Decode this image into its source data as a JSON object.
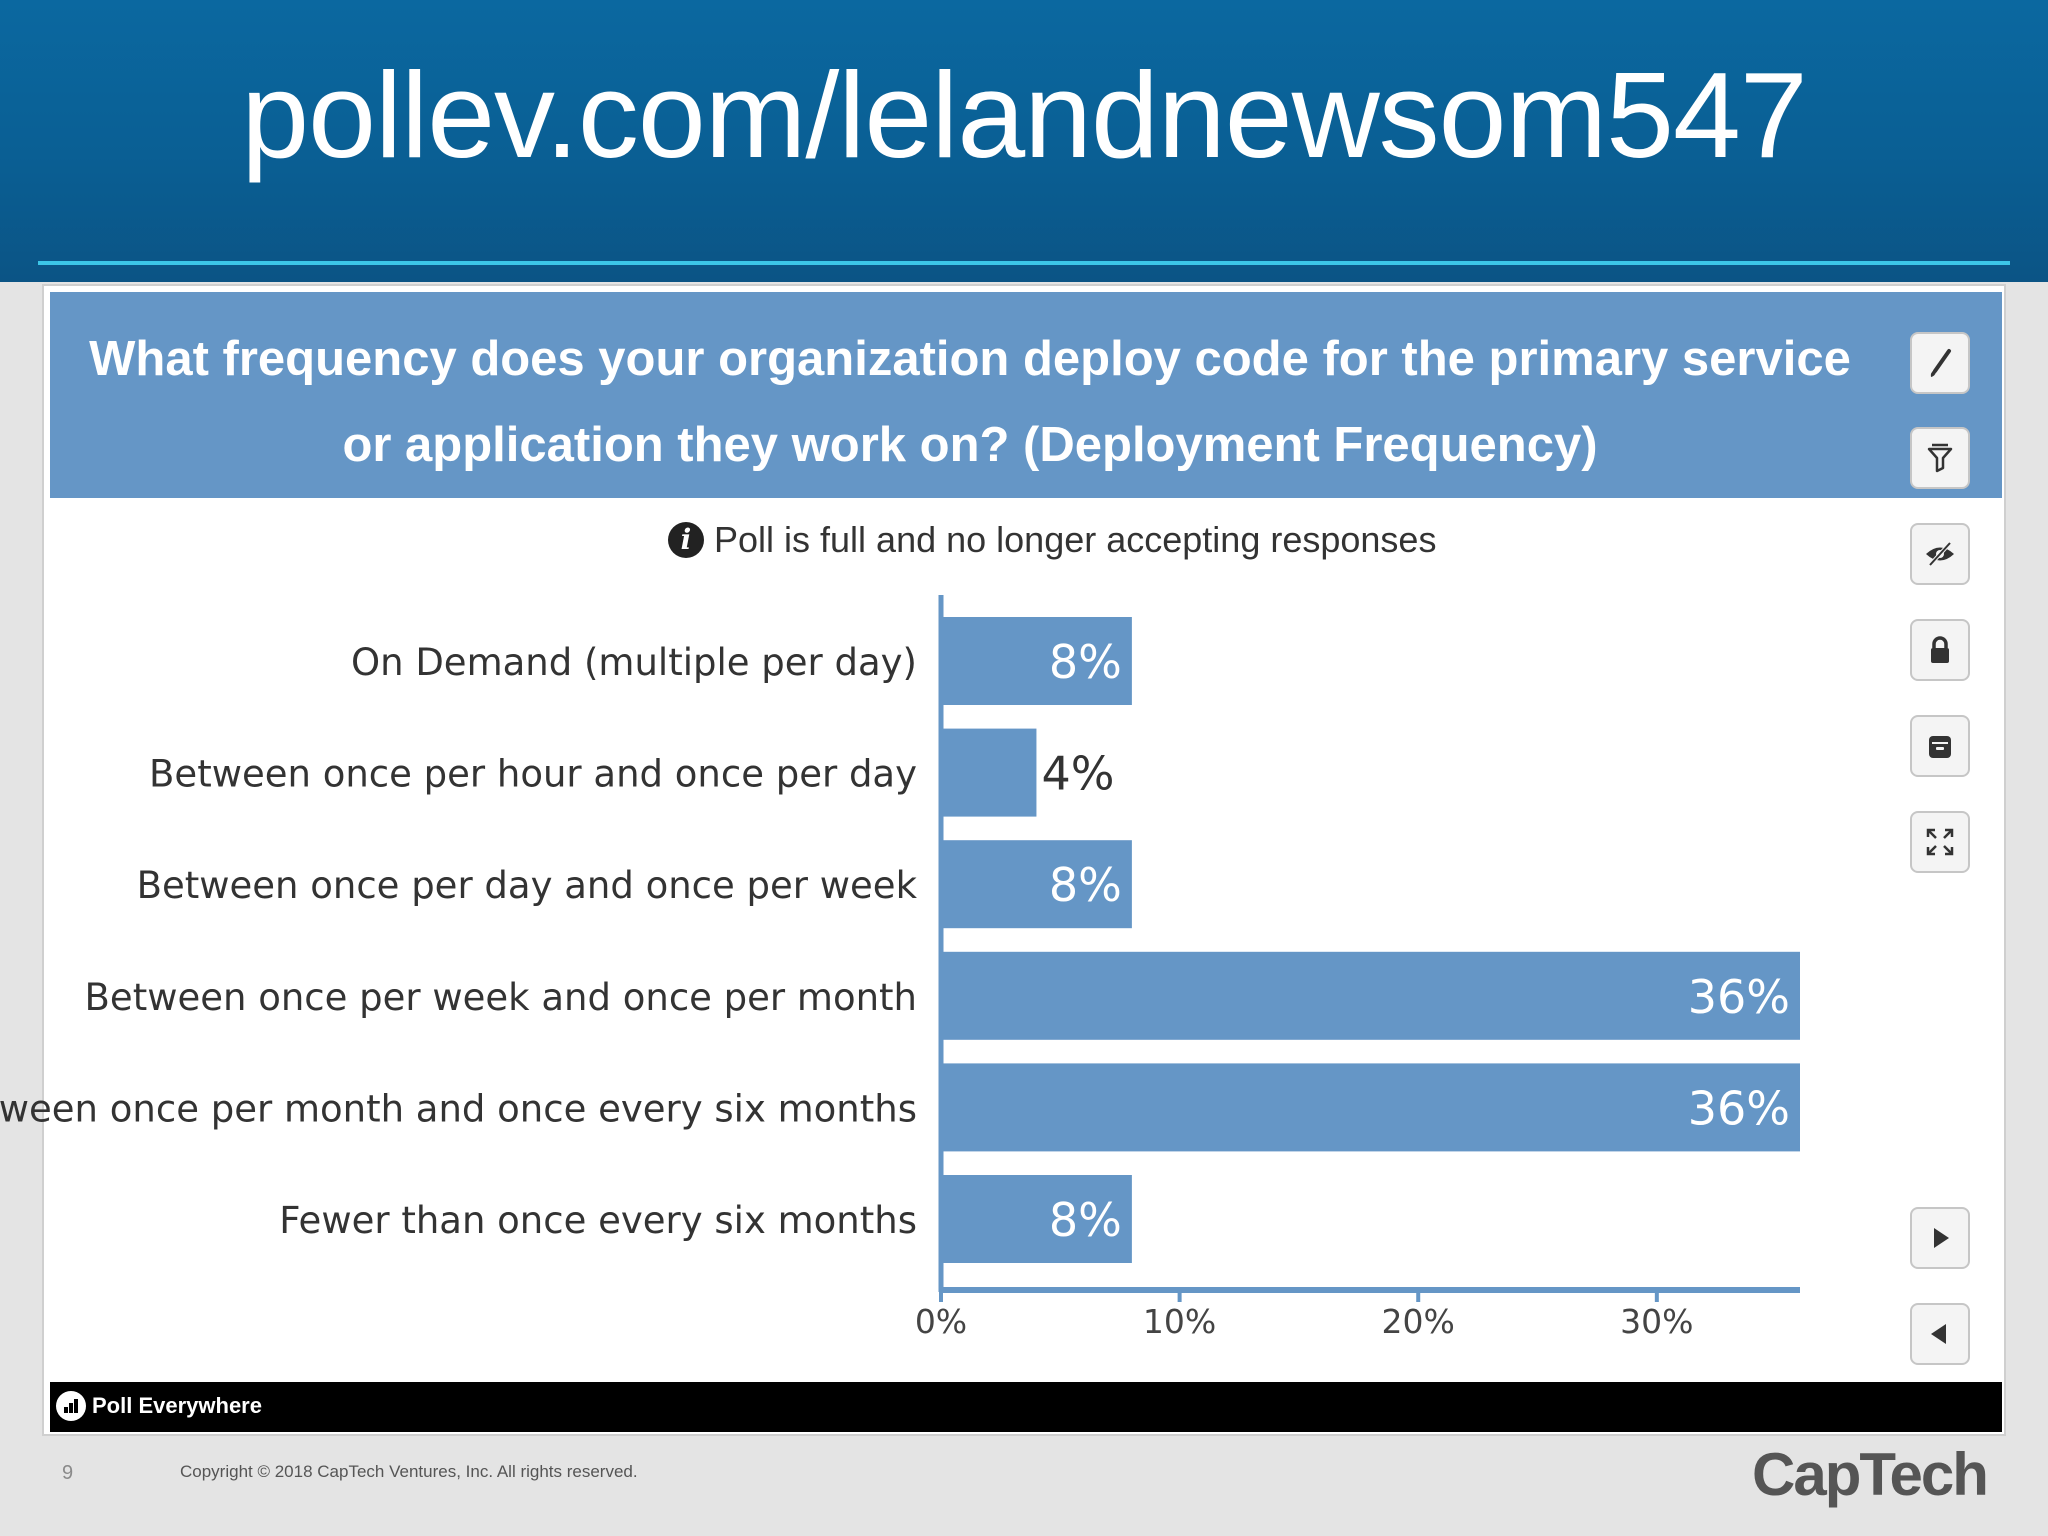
{
  "header": {
    "title": "pollev.com/lelandnewsom547"
  },
  "question": {
    "text": "What frequency does your organization deploy code for the primary service or application they work on? (Deployment Frequency)"
  },
  "notice": {
    "icon": "info-icon",
    "text": "Poll is full and no longer accepting responses"
  },
  "toolbar": {
    "buttons": [
      {
        "icon": "brush-icon"
      },
      {
        "icon": "filter-icon"
      },
      {
        "icon": "hide-eye-icon"
      },
      {
        "icon": "lock-icon"
      },
      {
        "icon": "archive-icon"
      },
      {
        "icon": "fullscreen-icon"
      },
      {
        "icon": "next-icon"
      },
      {
        "icon": "previous-icon"
      }
    ]
  },
  "chart_data": {
    "type": "bar",
    "orientation": "horizontal",
    "categories": [
      "On Demand (multiple per day)",
      "Between once per hour and once per day",
      "Between once per day and once per week",
      "Between once per week and once per month",
      "Between once per month and once every six months",
      "Fewer than once every six months"
    ],
    "values": [
      8,
      4,
      8,
      36,
      36,
      8
    ],
    "value_labels": [
      "8%",
      "4%",
      "8%",
      "36%",
      "36%",
      "8%"
    ],
    "xlim": [
      0,
      36
    ],
    "xticks": [
      0,
      10,
      20,
      30
    ],
    "xtick_labels": [
      "0%",
      "10%",
      "20%",
      "30%"
    ],
    "color": "#6596c6"
  },
  "footer": {
    "brand": "Poll Everywhere",
    "slide_number": "9",
    "copyright": "Copyright © 2018 CapTech Ventures, Inc. All rights reserved.",
    "company": "CapTech"
  }
}
